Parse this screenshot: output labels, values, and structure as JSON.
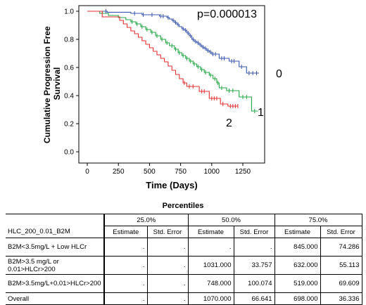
{
  "chart_data": {
    "type": "line",
    "subtype": "kaplan-meier step",
    "title": "",
    "xlabel": "Time (Days)",
    "ylabel": "Cumulative Progression Free Survival",
    "xlim": [
      0,
      1400
    ],
    "ylim": [
      0.0,
      1.0
    ],
    "x_ticks": [
      0,
      250,
      500,
      750,
      1000,
      1250
    ],
    "y_ticks": [
      0.0,
      0.2,
      0.4,
      0.6,
      0.8,
      1.0
    ],
    "y_tick_labels": [
      "0.0",
      "0.2",
      "0.4",
      "0.6",
      "0.8",
      "1.0"
    ],
    "grid": false,
    "legend": "none",
    "annotation": "p=0.000013",
    "series": [
      {
        "name": "0",
        "color": "#3a55b0",
        "points": [
          [
            0,
            1.0
          ],
          [
            140,
            1.0
          ],
          [
            160,
            0.993
          ],
          [
            330,
            0.993
          ],
          [
            350,
            0.985
          ],
          [
            420,
            0.985
          ],
          [
            440,
            0.975
          ],
          [
            560,
            0.975
          ],
          [
            580,
            0.965
          ],
          [
            620,
            0.965
          ],
          [
            640,
            0.955
          ],
          [
            660,
            0.945
          ],
          [
            680,
            0.935
          ],
          [
            700,
            0.92
          ],
          [
            720,
            0.905
          ],
          [
            740,
            0.89
          ],
          [
            760,
            0.875
          ],
          [
            780,
            0.865
          ],
          [
            800,
            0.845
          ],
          [
            820,
            0.825
          ],
          [
            840,
            0.8
          ],
          [
            860,
            0.785
          ],
          [
            880,
            0.775
          ],
          [
            900,
            0.76
          ],
          [
            920,
            0.745
          ],
          [
            940,
            0.735
          ],
          [
            960,
            0.72
          ],
          [
            980,
            0.71
          ],
          [
            1000,
            0.695
          ],
          [
            1040,
            0.695
          ],
          [
            1060,
            0.665
          ],
          [
            1120,
            0.665
          ],
          [
            1140,
            0.645
          ],
          [
            1200,
            0.645
          ],
          [
            1220,
            0.605
          ],
          [
            1260,
            0.605
          ],
          [
            1280,
            0.56
          ],
          [
            1380,
            0.56
          ]
        ],
        "censor_x": [
          150,
          380,
          450,
          520,
          590,
          610,
          650,
          690,
          710,
          730,
          770,
          790,
          810,
          830,
          850,
          870,
          890,
          910,
          930,
          950,
          970,
          990,
          1010,
          1030,
          1080,
          1100,
          1160,
          1180,
          1240,
          1300,
          1330,
          1360
        ]
      },
      {
        "name": "1",
        "color": "#22a644",
        "points": [
          [
            0,
            1.0
          ],
          [
            80,
            1.0
          ],
          [
            100,
            0.985
          ],
          [
            150,
            0.985
          ],
          [
            170,
            0.97
          ],
          [
            230,
            0.97
          ],
          [
            250,
            0.955
          ],
          [
            290,
            0.955
          ],
          [
            310,
            0.94
          ],
          [
            350,
            0.925
          ],
          [
            390,
            0.91
          ],
          [
            430,
            0.89
          ],
          [
            470,
            0.87
          ],
          [
            510,
            0.85
          ],
          [
            550,
            0.825
          ],
          [
            590,
            0.8
          ],
          [
            630,
            0.775
          ],
          [
            660,
            0.755
          ],
          [
            700,
            0.73
          ],
          [
            730,
            0.705
          ],
          [
            760,
            0.685
          ],
          [
            790,
            0.665
          ],
          [
            820,
            0.645
          ],
          [
            850,
            0.625
          ],
          [
            880,
            0.605
          ],
          [
            910,
            0.585
          ],
          [
            940,
            0.565
          ],
          [
            980,
            0.545
          ],
          [
            1010,
            0.52
          ],
          [
            1040,
            0.49
          ],
          [
            1060,
            0.455
          ],
          [
            1100,
            0.455
          ],
          [
            1120,
            0.435
          ],
          [
            1200,
            0.435
          ],
          [
            1220,
            0.39
          ],
          [
            1300,
            0.39
          ],
          [
            1320,
            0.29
          ],
          [
            1370,
            0.29
          ]
        ],
        "censor_x": [
          360,
          400,
          440,
          480,
          520,
          560,
          600,
          640,
          680,
          710,
          740,
          770,
          800,
          830,
          860,
          890,
          920,
          950,
          990,
          1025,
          1050,
          1080,
          1140,
          1170,
          1250,
          1280,
          1345
        ]
      },
      {
        "name": "2",
        "color": "#e03030",
        "points": [
          [
            0,
            1.0
          ],
          [
            100,
            1.0
          ],
          [
            120,
            0.96
          ],
          [
            240,
            0.96
          ],
          [
            260,
            0.935
          ],
          [
            290,
            0.91
          ],
          [
            320,
            0.885
          ],
          [
            350,
            0.86
          ],
          [
            380,
            0.84
          ],
          [
            410,
            0.815
          ],
          [
            440,
            0.79
          ],
          [
            470,
            0.765
          ],
          [
            500,
            0.74
          ],
          [
            530,
            0.715
          ],
          [
            560,
            0.69
          ],
          [
            590,
            0.665
          ],
          [
            620,
            0.64
          ],
          [
            650,
            0.61
          ],
          [
            680,
            0.58
          ],
          [
            710,
            0.55
          ],
          [
            740,
            0.52
          ],
          [
            770,
            0.49
          ],
          [
            800,
            0.465
          ],
          [
            880,
            0.465
          ],
          [
            900,
            0.43
          ],
          [
            960,
            0.43
          ],
          [
            980,
            0.38
          ],
          [
            1050,
            0.38
          ],
          [
            1070,
            0.34
          ],
          [
            1110,
            0.34
          ],
          [
            1130,
            0.325
          ],
          [
            1210,
            0.325
          ]
        ],
        "censor_x": [
          780,
          820,
          850,
          920,
          940,
          1000,
          1020,
          1040,
          1090,
          1150,
          1170,
          1190,
          1210
        ]
      }
    ],
    "curve_labels": {
      "s0": "0",
      "s1": "1",
      "s2": "2"
    }
  },
  "table": {
    "title": "Percentiles",
    "group_headers": [
      "25.0%",
      "50.0%",
      "75.0%"
    ],
    "row_header": "HLC_200_0.01_B2M",
    "sub_headers": [
      "Estimate",
      "Std. Error",
      "Estimate",
      "Std. Error",
      "Estimate",
      "Std. Error"
    ],
    "rows": [
      {
        "label": "B2M<3.5mg/L + Low HLCr",
        "values": [
          ".",
          ".",
          ".",
          ".",
          "845.000",
          "74.286"
        ]
      },
      {
        "label": "B2M>3.5 mg/L or 0.01>HLCr>200",
        "values": [
          ".",
          ".",
          "1031.000",
          "33.757",
          "632.000",
          "55.113"
        ]
      },
      {
        "label": "B2M>3.5mg/L+0.01>HLCr>200",
        "values": [
          ".",
          ".",
          "748.000",
          "100.074",
          "519.000",
          "69.609"
        ]
      },
      {
        "label": "Overall",
        "values": [
          ".",
          ".",
          "1070.000",
          "66.641",
          "698.000",
          "36.336"
        ]
      }
    ]
  }
}
